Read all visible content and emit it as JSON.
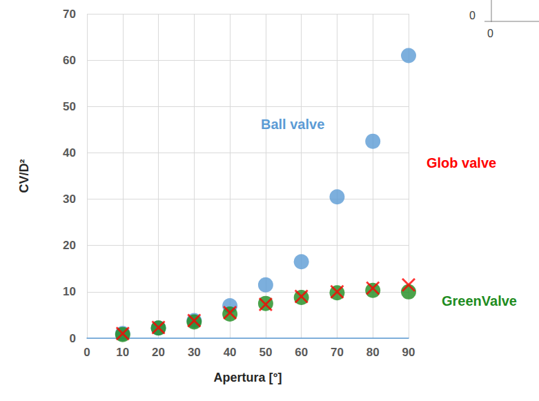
{
  "chart_data": {
    "type": "scatter",
    "x_label": "Apertura [°]",
    "y_label": "CV/D²",
    "x": [
      10,
      20,
      30,
      40,
      50,
      60,
      70,
      80,
      90
    ],
    "series": [
      {
        "name": "Ball valve",
        "color": "#5b9bd5",
        "marker": "circle",
        "values": [
          1,
          2.2,
          3.8,
          7,
          11.5,
          16.5,
          30.5,
          42.5,
          61
        ]
      },
      {
        "name": "GreenValve",
        "color": "#1e8c1e",
        "marker": "circle",
        "values": [
          0.8,
          2.2,
          3.5,
          5.2,
          7.5,
          8.8,
          9.8,
          10.3,
          10
        ]
      },
      {
        "name": "Glob valve",
        "color": "#ff0000",
        "marker": "x",
        "values": [
          1,
          2.3,
          3.8,
          5.5,
          7.3,
          9,
          10,
          10.8,
          11.5
        ]
      }
    ],
    "xlim": [
      0,
      90
    ],
    "xticks": [
      0,
      10,
      20,
      30,
      40,
      50,
      60,
      70,
      80,
      90
    ],
    "ylim": [
      0,
      70
    ],
    "yticks": [
      0,
      10,
      20,
      30,
      40,
      50,
      60,
      70
    ],
    "grid": true,
    "annotations": [
      "0",
      "0"
    ]
  }
}
